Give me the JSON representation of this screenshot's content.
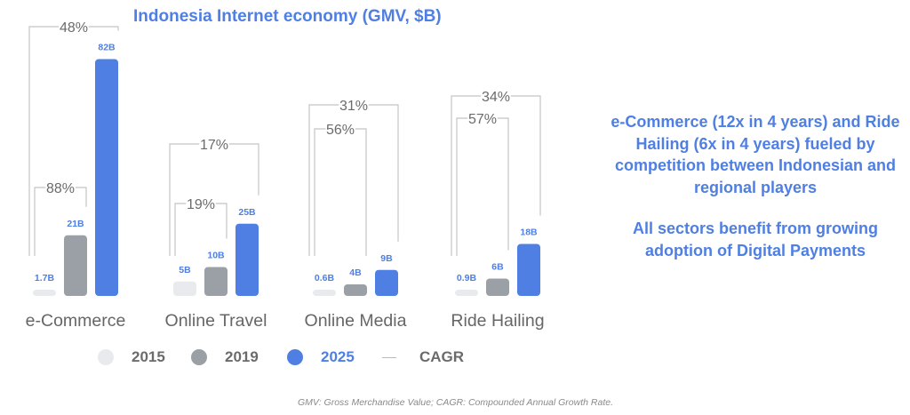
{
  "chart_data": {
    "type": "bar",
    "title": "Indonesia Internet economy (GMV, $B)",
    "categories": [
      "e-Commerce",
      "Online Travel",
      "Online Media",
      "Ride Hailing"
    ],
    "series": [
      {
        "name": "2015",
        "values": [
          1.7,
          5,
          0.6,
          0.9
        ],
        "labels": [
          "1.7B",
          "5B",
          "0.6B",
          "0.9B"
        ],
        "color": "#e8eaed"
      },
      {
        "name": "2019",
        "values": [
          21,
          10,
          4,
          6
        ],
        "labels": [
          "21B",
          "10B",
          "4B",
          "6B"
        ],
        "color": "#9aa0a6"
      },
      {
        "name": "2025",
        "values": [
          82,
          25,
          9,
          18
        ],
        "labels": [
          "82B",
          "25B",
          "9B",
          "18B"
        ],
        "color": "#4f7fe3"
      }
    ],
    "cagr_2015_2019": [
      "88%",
      "19%",
      "56%",
      "57%"
    ],
    "cagr_2015_2025": [
      "48%",
      "17%",
      "31%",
      "34%"
    ],
    "legend": {
      "items": [
        "2015",
        "2019",
        "2025",
        "CAGR"
      ],
      "placement": "bottom"
    },
    "value_label_color": "#4f7fe3",
    "grid": false
  },
  "side_text": {
    "paragraph1": "e-Commerce (12x in 4 years) and Ride Hailing (6x in 4 years) fueled by competition between Indonesian and regional players",
    "paragraph2": "All sectors benefit from growing adoption of Digital Payments"
  },
  "footnote": "GMV: Gross Merchandise Value; CAGR: Compounded Annual Growth Rate."
}
